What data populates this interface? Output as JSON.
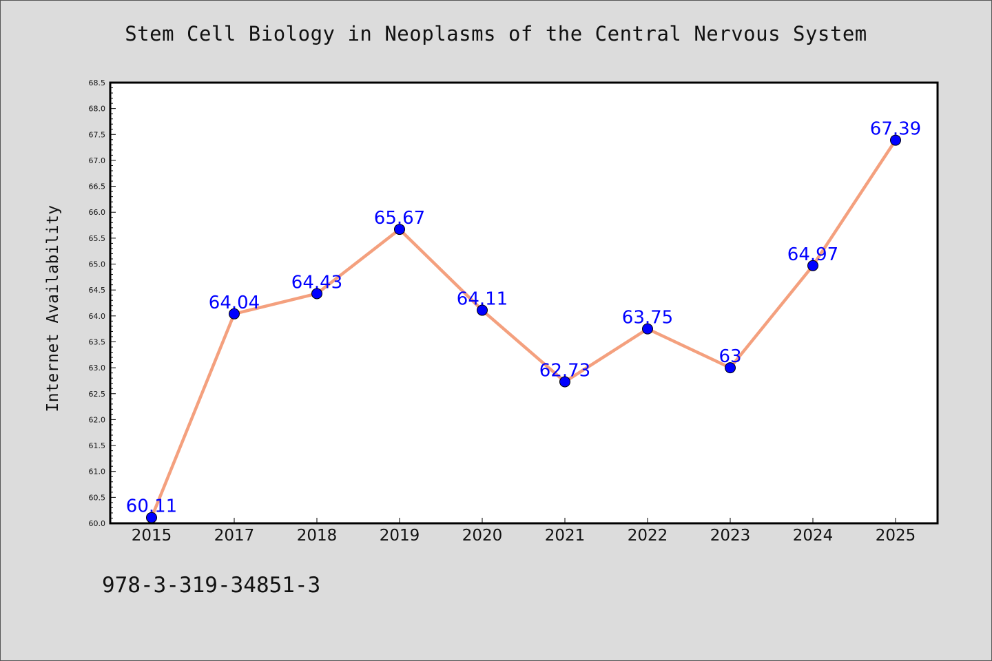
{
  "chart_data": {
    "type": "line",
    "title": "Stem Cell Biology in Neoplasms of the Central Nervous System",
    "xlabel": "",
    "ylabel": "Internet Availability",
    "categories": [
      "2015",
      "2017",
      "2018",
      "2019",
      "2020",
      "2021",
      "2022",
      "2023",
      "2024",
      "2025"
    ],
    "series": [
      {
        "values": [
          60.11,
          64.04,
          64.43,
          65.67,
          64.11,
          62.73,
          63.75,
          63,
          64.97,
          67.39
        ],
        "labels": [
          "60.11",
          "64.04",
          "64.43",
          "65.67",
          "64.11",
          "62.73",
          "63.75",
          "63",
          "64.97",
          "67.39"
        ]
      }
    ],
    "ylim": [
      60.0,
      68.5
    ],
    "yticks": [
      "60.0",
      "60.5",
      "61.0",
      "61.5",
      "62.0",
      "62.5",
      "63.0",
      "63.5",
      "64.0",
      "64.5",
      "65.0",
      "65.5",
      "66.0",
      "66.5",
      "67.0",
      "67.5",
      "68.0",
      "68.5"
    ],
    "line_color": "#f4a07e",
    "marker_color": "#0000ff",
    "label_color": "#0000ff",
    "background_color": "#dcdcdc",
    "plot_background": "#ffffff",
    "grid": false
  },
  "footer": {
    "isbn": "978-3-319-34851-3"
  }
}
